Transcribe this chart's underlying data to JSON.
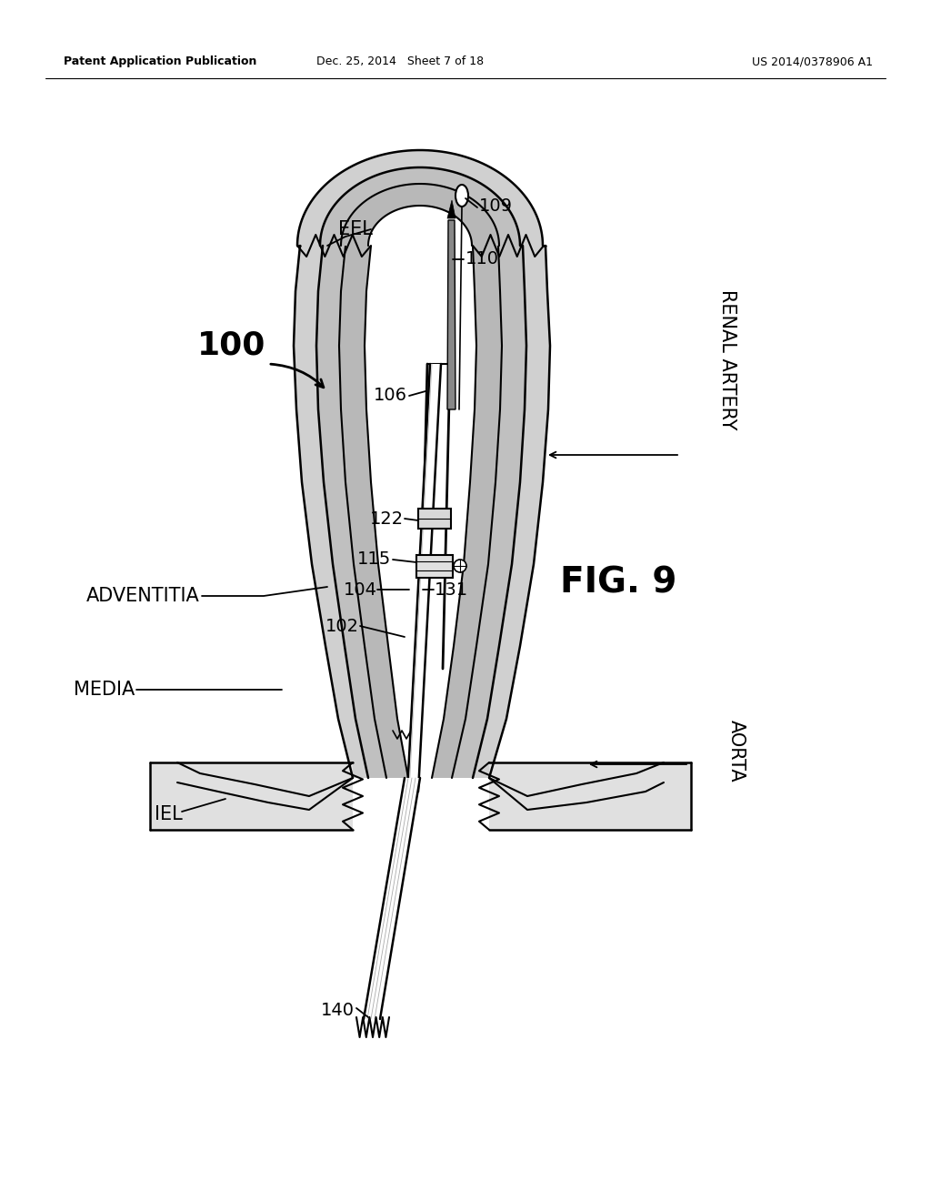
{
  "header_left": "Patent Application Publication",
  "header_mid": "Dec. 25, 2014   Sheet 7 of 18",
  "header_right": "US 2014/0378906 A1",
  "figure_label": "FIG. 9",
  "bg_color": "#ffffff",
  "gray1": "#d0d0d0",
  "gray2": "#c0c0c0",
  "gray3": "#b8b8b8",
  "gray_light": "#e0e0e0"
}
